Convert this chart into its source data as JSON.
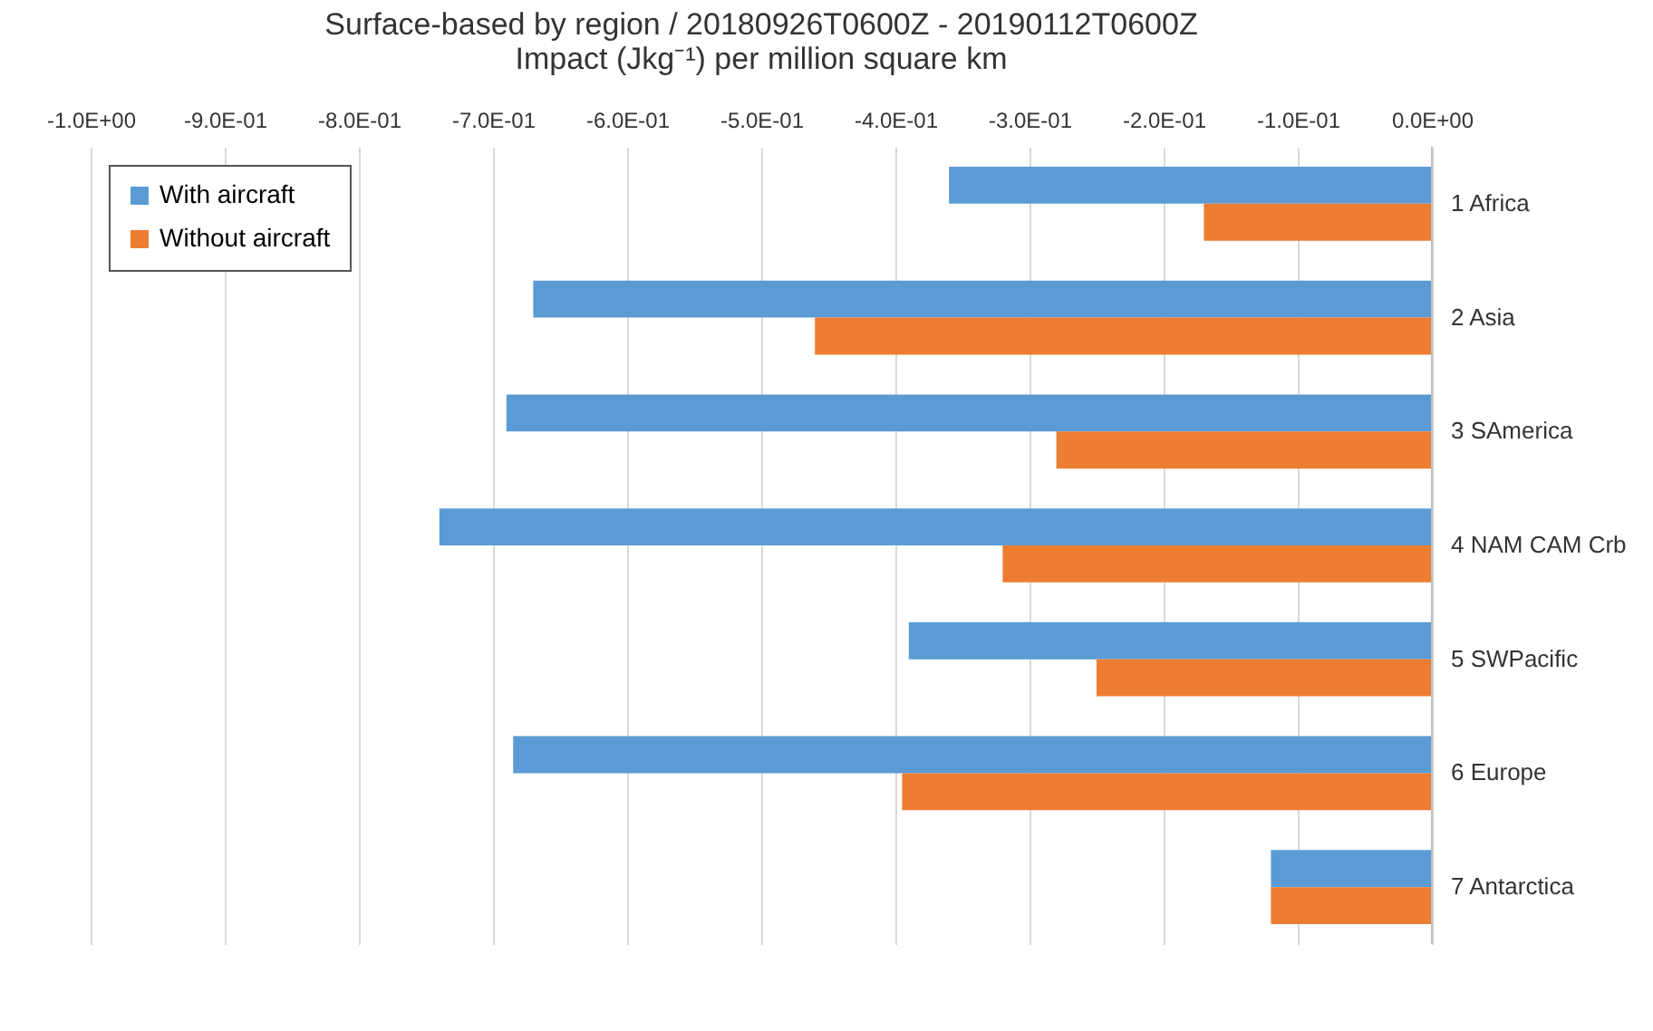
{
  "chart_data": {
    "type": "bar",
    "orientation": "horizontal",
    "title": "Surface-based by region / 20180926T0600Z - 20190112T0600Z",
    "subtitle": "Impact (Jkg⁻¹) per million square km",
    "categories": [
      "1 Africa",
      "2 Asia",
      "3 SAmerica",
      "4 NAM CAM Crb",
      "5 SWPacific",
      "6 Europe",
      "7 Antarctica"
    ],
    "series": [
      {
        "name": "With aircraft",
        "color": "#5b9bd5",
        "values": [
          -0.36,
          -0.67,
          -0.69,
          -0.74,
          -0.39,
          -0.685,
          -0.12
        ]
      },
      {
        "name": "Without aircraft",
        "color": "#ed7d31",
        "values": [
          -0.17,
          -0.46,
          -0.28,
          -0.32,
          -0.25,
          -0.395,
          -0.12
        ]
      }
    ],
    "xlim": [
      -1.0,
      0
    ],
    "xticks": [
      {
        "value": -1.0,
        "label": "-1.0E+00"
      },
      {
        "value": -0.9,
        "label": "-9.0E-01"
      },
      {
        "value": -0.8,
        "label": "-8.0E-01"
      },
      {
        "value": -0.7,
        "label": "-7.0E-01"
      },
      {
        "value": -0.6,
        "label": "-6.0E-01"
      },
      {
        "value": -0.5,
        "label": "-5.0E-01"
      },
      {
        "value": -0.4,
        "label": "-4.0E-01"
      },
      {
        "value": -0.3,
        "label": "-3.0E-01"
      },
      {
        "value": -0.2,
        "label": "-2.0E-01"
      },
      {
        "value": -0.1,
        "label": "-1.0E-01"
      },
      {
        "value": 0,
        "label": "0.0E+00"
      }
    ],
    "grid": "x",
    "legend": "top left"
  }
}
